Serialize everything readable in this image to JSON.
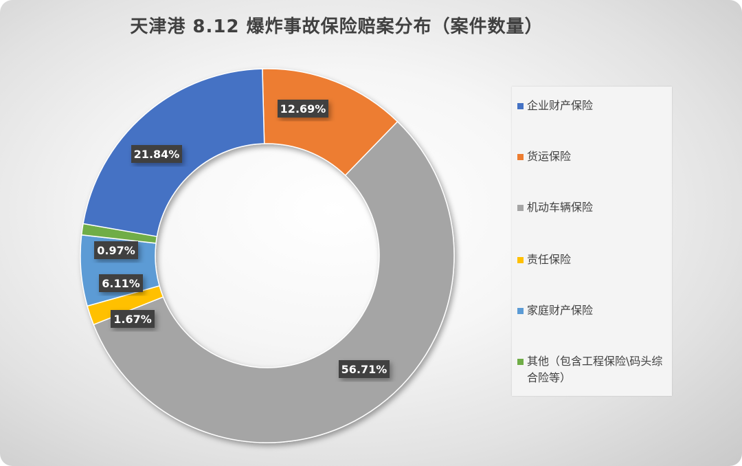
{
  "chart_data": {
    "type": "pie",
    "title": "天津港 8.12 爆炸事故保险赔案分布（案件数量）",
    "categories": [
      "企业财产保险",
      "货运保险",
      "机动车辆保险",
      "责任保险",
      "家庭财产保险",
      "其他（包含工程保险\\码头综合险等）"
    ],
    "values": [
      21.84,
      12.69,
      56.71,
      1.67,
      6.11,
      0.97
    ],
    "labels": [
      "21.84%",
      "12.69%",
      "56.71%",
      "1.67%",
      "6.11%",
      "0.97%"
    ],
    "colors": [
      "#4472C4",
      "#ED7D31",
      "#A5A5A5",
      "#FFC000",
      "#5B9BD5",
      "#70AD47"
    ],
    "style": "donut",
    "legend_position": "right"
  }
}
